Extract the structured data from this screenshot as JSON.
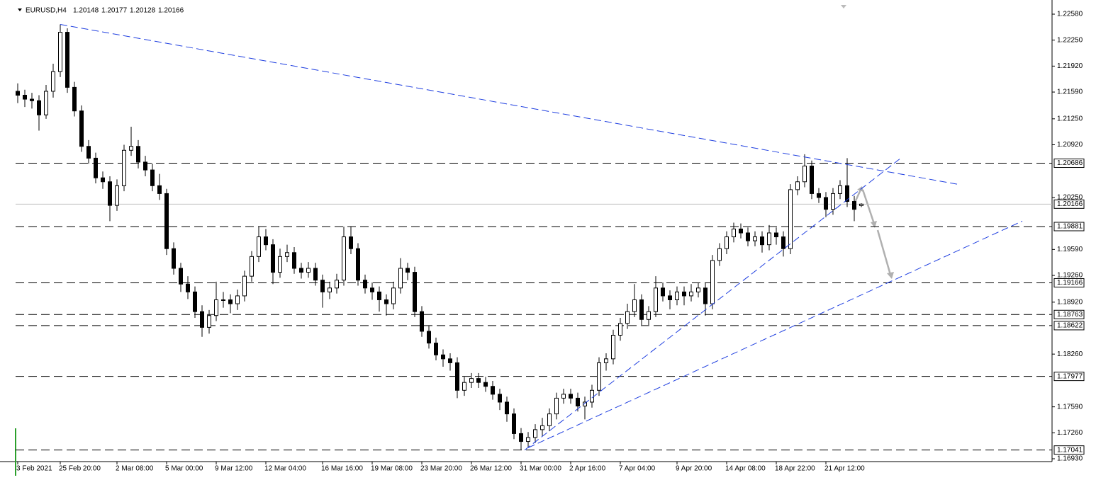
{
  "chart_data": {
    "type": "candlestick",
    "symbol": "EURUSD,H4",
    "quote": {
      "open": 1.20148,
      "high": 1.20177,
      "low": 1.20128,
      "close": 1.20166
    },
    "categories": [
      "3 Feb 2021",
      null,
      null,
      null,
      null,
      null,
      "25 Feb 20:00",
      null,
      null,
      null,
      null,
      null,
      null,
      null,
      "2 Mar 08:00",
      null,
      null,
      null,
      null,
      null,
      null,
      "5 Mar 00:00",
      null,
      null,
      null,
      null,
      null,
      null,
      "9 Mar 12:00",
      null,
      null,
      null,
      null,
      null,
      null,
      "12 Mar 04:00",
      null,
      null,
      null,
      null,
      null,
      null,
      null,
      "16 Mar 16:00",
      null,
      null,
      null,
      null,
      null,
      null,
      "19 Mar 08:00",
      null,
      null,
      null,
      null,
      null,
      null,
      "23 Mar 20:00",
      null,
      null,
      null,
      null,
      null,
      null,
      "26 Mar 12:00",
      null,
      null,
      null,
      null,
      null,
      null,
      "31 Mar 00:00",
      null,
      null,
      null,
      null,
      null,
      null,
      "2 Apr 16:00",
      null,
      null,
      null,
      null,
      null,
      null,
      "7 Apr 04:00",
      null,
      null,
      null,
      null,
      null,
      null,
      null,
      "9 Apr 20:00",
      null,
      null,
      null,
      null,
      null,
      null,
      "14 Apr 08:00",
      null,
      null,
      null,
      null,
      null,
      null,
      "18 Apr 22:00",
      null,
      null,
      null,
      null,
      null,
      null,
      "21 Apr 12:00",
      null,
      null,
      null,
      null,
      null
    ],
    "open": [
      1.216,
      1.2155,
      1.215,
      1.2148,
      1.213,
      1.216,
      1.2185,
      1.2235,
      1.2165,
      1.2135,
      1.209,
      1.2075,
      1.205,
      1.2045,
      1.2015,
      1.204,
      1.2085,
      1.209,
      1.207,
      1.206,
      1.204,
      1.203,
      1.196,
      1.1935,
      1.1915,
      1.1905,
      1.188,
      1.186,
      1.1875,
      1.1895,
      1.1895,
      1.189,
      1.19,
      1.1925,
      1.195,
      1.1975,
      1.1965,
      1.193,
      1.195,
      1.1955,
      1.1935,
      1.193,
      1.1935,
      1.192,
      1.1905,
      1.191,
      1.192,
      1.1975,
      1.196,
      1.192,
      1.191,
      1.1905,
      1.1895,
      1.189,
      1.191,
      1.1935,
      1.193,
      1.188,
      1.1855,
      1.184,
      1.1825,
      1.182,
      1.1815,
      1.178,
      1.179,
      1.1795,
      1.179,
      1.1785,
      1.1775,
      1.1765,
      1.175,
      1.1725,
      1.1715,
      1.172,
      1.173,
      1.1735,
      1.175,
      1.177,
      1.1775,
      1.177,
      1.176,
      1.1765,
      1.178,
      1.1815,
      1.182,
      1.185,
      1.1865,
      1.188,
      1.1895,
      1.187,
      1.188,
      1.191,
      1.19,
      1.1895,
      1.1905,
      1.19,
      1.1905,
      1.191,
      1.189,
      1.1945,
      1.196,
      1.1975,
      1.1985,
      1.198,
      1.197,
      1.1975,
      1.1965,
      1.198,
      1.1975,
      1.196,
      1.2035,
      1.2045,
      1.2065,
      1.203,
      1.2025,
      1.201,
      1.203,
      1.204,
      1.202,
      1.20148
    ],
    "high": [
      1.217,
      1.2162,
      1.2158,
      1.2155,
      1.2168,
      1.2195,
      1.2245,
      1.224,
      1.2172,
      1.2142,
      1.2098,
      1.2082,
      1.2058,
      1.2052,
      1.2048,
      1.2092,
      1.2115,
      1.2098,
      1.2078,
      1.2068,
      1.2055,
      1.2036,
      1.1968,
      1.1942,
      1.1925,
      1.1912,
      1.1888,
      1.1882,
      1.1918,
      1.1905,
      1.1902,
      1.1908,
      1.1932,
      1.1957,
      1.1988,
      1.1985,
      1.1972,
      1.196,
      1.1965,
      1.1962,
      1.1942,
      1.1943,
      1.1942,
      1.1927,
      1.1918,
      1.1928,
      1.1988,
      1.1988,
      1.1967,
      1.1927,
      1.1917,
      1.1912,
      1.1902,
      1.1918,
      1.1948,
      1.1942,
      1.1937,
      1.1887,
      1.1862,
      1.1847,
      1.1832,
      1.1827,
      1.1822,
      1.1797,
      1.1802,
      1.1802,
      1.1797,
      1.1792,
      1.1782,
      1.1772,
      1.1757,
      1.1732,
      1.1727,
      1.1737,
      1.1745,
      1.1757,
      1.1777,
      1.1782,
      1.1782,
      1.1777,
      1.1772,
      1.1787,
      1.1822,
      1.1827,
      1.1857,
      1.1872,
      1.189,
      1.1915,
      1.1902,
      1.1887,
      1.1925,
      1.1917,
      1.1907,
      1.1912,
      1.1912,
      1.1915,
      1.1917,
      1.1917,
      1.1952,
      1.1967,
      1.1982,
      1.1993,
      1.1992,
      1.1987,
      1.1982,
      1.1982,
      1.199,
      1.1987,
      1.1982,
      1.2042,
      1.2052,
      1.208,
      1.2072,
      1.2037,
      1.2032,
      1.2037,
      1.2047,
      1.2075,
      1.2027,
      1.20177
    ],
    "low": [
      1.2145,
      1.214,
      1.2138,
      1.211,
      1.2125,
      1.2152,
      1.2178,
      1.2158,
      1.2128,
      1.2083,
      1.2068,
      1.2043,
      1.2036,
      1.1995,
      1.2008,
      1.2033,
      1.2078,
      1.2062,
      1.2052,
      1.2033,
      1.2022,
      1.1952,
      1.1927,
      1.1905,
      1.1896,
      1.1872,
      1.1848,
      1.1852,
      1.1868,
      1.1885,
      1.1878,
      1.1882,
      1.1893,
      1.1918,
      1.1943,
      1.1958,
      1.1915,
      1.1923,
      1.1943,
      1.1928,
      1.1922,
      1.1923,
      1.1913,
      1.1885,
      1.1896,
      1.1903,
      1.1913,
      1.1953,
      1.1913,
      1.1903,
      1.1895,
      1.188,
      1.1875,
      1.1883,
      1.1903,
      1.192,
      1.1873,
      1.1848,
      1.1833,
      1.1818,
      1.181,
      1.1805,
      1.177,
      1.1773,
      1.1783,
      1.1783,
      1.1778,
      1.1768,
      1.1755,
      1.174,
      1.1718,
      1.1704,
      1.1708,
      1.1713,
      1.1722,
      1.1728,
      1.1743,
      1.1763,
      1.1763,
      1.1753,
      1.1743,
      1.1758,
      1.1773,
      1.1805,
      1.1813,
      1.1843,
      1.1858,
      1.1873,
      1.1863,
      1.1863,
      1.1873,
      1.1893,
      1.1883,
      1.1888,
      1.1888,
      1.1893,
      1.1898,
      1.1875,
      1.1883,
      1.1938,
      1.1953,
      1.1968,
      1.1973,
      1.1963,
      1.1963,
      1.1955,
      1.1958,
      1.1965,
      1.195,
      1.1953,
      1.2028,
      1.2038,
      1.2023,
      1.2018,
      1.2,
      1.2003,
      1.2023,
      1.2013,
      1.1995,
      1.20128
    ],
    "close": [
      1.2155,
      1.215,
      1.2148,
      1.213,
      1.216,
      1.2185,
      1.2235,
      1.2165,
      1.2135,
      1.209,
      1.2075,
      1.205,
      1.2045,
      1.2015,
      1.204,
      1.2085,
      1.209,
      1.207,
      1.206,
      1.204,
      1.203,
      1.196,
      1.1935,
      1.1915,
      1.1905,
      1.188,
      1.186,
      1.1875,
      1.1895,
      1.1895,
      1.189,
      1.19,
      1.1925,
      1.195,
      1.1975,
      1.1965,
      1.193,
      1.195,
      1.1955,
      1.1935,
      1.193,
      1.1935,
      1.192,
      1.1905,
      1.191,
      1.192,
      1.1975,
      1.196,
      1.192,
      1.191,
      1.1905,
      1.1895,
      1.189,
      1.191,
      1.1935,
      1.193,
      1.188,
      1.1855,
      1.184,
      1.1825,
      1.182,
      1.1815,
      1.178,
      1.179,
      1.1795,
      1.179,
      1.1785,
      1.1775,
      1.1765,
      1.175,
      1.1725,
      1.1715,
      1.172,
      1.173,
      1.1735,
      1.175,
      1.177,
      1.1775,
      1.177,
      1.176,
      1.1765,
      1.178,
      1.1815,
      1.182,
      1.185,
      1.1865,
      1.188,
      1.1895,
      1.187,
      1.188,
      1.191,
      1.19,
      1.1895,
      1.1905,
      1.19,
      1.1905,
      1.191,
      1.189,
      1.1945,
      1.196,
      1.1975,
      1.1985,
      1.198,
      1.197,
      1.1975,
      1.1965,
      1.198,
      1.1975,
      1.196,
      1.2035,
      1.2045,
      1.2065,
      1.203,
      1.2025,
      1.201,
      1.203,
      1.204,
      1.202,
      1.201,
      1.20166
    ],
    "ylim": [
      1.1693,
      1.2258
    ],
    "yticks": [
      {
        "value": 1.2258,
        "label": "1.22580"
      },
      {
        "value": 1.2225,
        "label": "1.22250"
      },
      {
        "value": 1.2192,
        "label": "1.21920"
      },
      {
        "value": 1.2159,
        "label": "1.21590"
      },
      {
        "value": 1.2125,
        "label": "1.21250"
      },
      {
        "value": 1.2092,
        "label": "1.20920"
      },
      {
        "value": 1.2025,
        "label": "1.20250"
      },
      {
        "value": 1.1959,
        "label": "1.19590"
      },
      {
        "value": 1.1926,
        "label": "1.19260"
      },
      {
        "value": 1.1892,
        "label": "1.18920"
      },
      {
        "value": 1.1826,
        "label": "1.18260"
      },
      {
        "value": 1.1759,
        "label": "1.17590"
      },
      {
        "value": 1.1726,
        "label": "1.17260"
      },
      {
        "value": 1.1693,
        "label": "1.16930"
      }
    ],
    "levels": [
      1.20686,
      1.19881,
      1.19166,
      1.18763,
      1.18622,
      1.17977,
      1.17041
    ],
    "current_price": 1.20166,
    "trendline_color": "#1f3fe0",
    "trendlines": [
      {
        "x": [
          6,
          132.5
        ],
        "y": [
          1.2245,
          1.2042
        ]
      },
      {
        "x": [
          71.5,
          124.7
        ],
        "y": [
          1.1704,
          1.2076
        ]
      },
      {
        "x": [
          72,
          141.7
        ],
        "y": [
          1.1707,
          1.1995
        ]
      }
    ]
  }
}
